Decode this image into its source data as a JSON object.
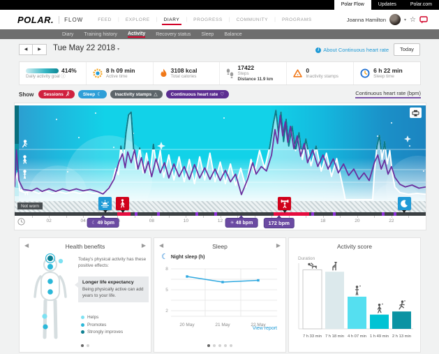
{
  "topbar": {
    "tabs": [
      {
        "label": "Polar Flow",
        "active": true
      },
      {
        "label": "Updates",
        "active": false
      },
      {
        "label": "Polar.com",
        "active": false
      }
    ]
  },
  "nav": {
    "logo": "POLAR.",
    "flow": "FLOW",
    "items": [
      {
        "label": "FEED"
      },
      {
        "label": "EXPLORE"
      },
      {
        "label": "DIARY"
      },
      {
        "label": "PROGRESS"
      },
      {
        "label": "COMMUNITY"
      },
      {
        "label": "PROGRAMS"
      }
    ],
    "active_item": "DIARY",
    "user": {
      "name": "Joanna Hamilton"
    }
  },
  "subnav": {
    "items": [
      {
        "label": "Diary"
      },
      {
        "label": "Training history"
      },
      {
        "label": "Activity"
      },
      {
        "label": "Recovery status"
      },
      {
        "label": "Sleep"
      },
      {
        "label": "Balance"
      }
    ],
    "active_item": "Activity"
  },
  "dateRow": {
    "date": "Tue May 22 2018",
    "aboutLink": "About Continuous heart rate",
    "todayButton": "Today"
  },
  "summary": {
    "goal": {
      "percent": "414%",
      "label": "Daily activity goal"
    },
    "activeTime": {
      "value": "8 h 09 min",
      "label": "Active time"
    },
    "calories": {
      "value": "3108 kcal",
      "label": "Total calories"
    },
    "steps": {
      "value": "17422",
      "label": "Steps",
      "distance": "Distance 11.9 km"
    },
    "inactivity": {
      "value": "0",
      "label": "Inactivity stamps"
    },
    "sleep": {
      "value": "6 h 22 min",
      "label": "Sleep time"
    }
  },
  "filters": {
    "show": "Show",
    "pills": [
      {
        "label": "Sessions",
        "color": "#d0213f",
        "icon": "runner-icon"
      },
      {
        "label": "Sleep",
        "color": "#2f9fd8",
        "icon": "moon-icon"
      },
      {
        "label": "Inactivity stamps",
        "color": "#5d656a",
        "icon": "triangle-icon"
      },
      {
        "label": "Continuous heart rate",
        "color": "#5c2e91",
        "icon": "heart-icon"
      }
    ],
    "axisLabel": "Continuous heart rate (bpm)"
  },
  "mainChart": {
    "notWorn": "Not worn",
    "pills": [
      {
        "icon": "moon",
        "label": "49 bpm",
        "t": 5.16
      },
      {
        "icon": "sun",
        "label": "48 bpm",
        "t": 13.24
      },
      {
        "icon": "",
        "label": "172 bpm",
        "t": 15.43
      }
    ]
  },
  "chart_data": [
    {
      "id": "continuous-heart-rate",
      "type": "area",
      "x_unit": "hours",
      "x_range": [
        0,
        24
      ],
      "ticks": [
        "02",
        "04",
        "06",
        "08",
        "10",
        "12",
        "14",
        "16",
        "18",
        "20",
        "22"
      ],
      "ylabel": "Continuous heart rate (bpm)",
      "hr_markers": {
        "sleep_min_bpm": 49,
        "day_min_bpm": 48,
        "max_bpm": 172
      },
      "sessions": [
        {
          "type": "walking",
          "start": 5.97,
          "end": 6.78,
          "badge_t": 6.3
        },
        {
          "type": "strength",
          "start": 15.1,
          "end": 17.18,
          "badge_t": 15.76
        }
      ],
      "wake_t": 5.28,
      "bedtime_t": 22.74,
      "not_worn_gaps": [
        [
          19.3,
          20.9
        ]
      ],
      "timeline_marks": [
        6.99,
        8.33,
        10.56,
        11.66,
        17.3,
        18.6,
        21.45,
        22.13
      ],
      "hr_series": [
        [
          0,
          60
        ],
        [
          0.1,
          118
        ],
        [
          0.25,
          70
        ],
        [
          0.5,
          56
        ],
        [
          1,
          54
        ],
        [
          1.3,
          58
        ],
        [
          1.6,
          53
        ],
        [
          2,
          57
        ],
        [
          2.4,
          53
        ],
        [
          2.8,
          57
        ],
        [
          3.2,
          54
        ],
        [
          3.6,
          57
        ],
        [
          4,
          54
        ],
        [
          4.4,
          56
        ],
        [
          4.8,
          53
        ],
        [
          5.16,
          49
        ],
        [
          5.5,
          58
        ],
        [
          5.8,
          72
        ],
        [
          6.1,
          100
        ],
        [
          6.3,
          112
        ],
        [
          6.45,
          90
        ],
        [
          6.6,
          115
        ],
        [
          6.8,
          98
        ],
        [
          7,
          118
        ],
        [
          7.2,
          88
        ],
        [
          7.4,
          106
        ],
        [
          7.6,
          82
        ],
        [
          7.8,
          100
        ],
        [
          8,
          76
        ],
        [
          8.25,
          104
        ],
        [
          8.5,
          82
        ],
        [
          8.75,
          98
        ],
        [
          9,
          74
        ],
        [
          9.3,
          96
        ],
        [
          9.6,
          76
        ],
        [
          9.9,
          92
        ],
        [
          10.2,
          72
        ],
        [
          10.5,
          95
        ],
        [
          10.8,
          74
        ],
        [
          11.1,
          90
        ],
        [
          11.4,
          72
        ],
        [
          11.7,
          88
        ],
        [
          12,
          70
        ],
        [
          12.3,
          86
        ],
        [
          12.6,
          68
        ],
        [
          12.9,
          80
        ],
        [
          13.24,
          48
        ],
        [
          13.6,
          72
        ],
        [
          13.9,
          98
        ],
        [
          14.1,
          80
        ],
        [
          14.4,
          92
        ],
        [
          14.7,
          85
        ],
        [
          15,
          110
        ],
        [
          15.2,
          150
        ],
        [
          15.35,
          128
        ],
        [
          15.5,
          172
        ],
        [
          15.65,
          140
        ],
        [
          15.8,
          162
        ],
        [
          15.95,
          130
        ],
        [
          16.1,
          155
        ],
        [
          16.3,
          120
        ],
        [
          16.5,
          140
        ],
        [
          16.7,
          108
        ],
        [
          16.9,
          128
        ],
        [
          17.1,
          98
        ],
        [
          17.4,
          118
        ],
        [
          17.7,
          92
        ],
        [
          18,
          110
        ],
        [
          18.3,
          88
        ],
        [
          18.6,
          104
        ],
        [
          18.9,
          82
        ],
        [
          19.2,
          96
        ],
        [
          19.5,
          78
        ],
        [
          19.8,
          88
        ],
        [
          20.1,
          72
        ],
        [
          20.4,
          82
        ],
        [
          20.7,
          70
        ],
        [
          21,
          98
        ],
        [
          21.2,
          110
        ],
        [
          21.4,
          88
        ],
        [
          21.6,
          102
        ],
        [
          21.8,
          80
        ],
        [
          22,
          92
        ],
        [
          22.2,
          75
        ],
        [
          22.5,
          64
        ],
        [
          22.8,
          60
        ],
        [
          23.2,
          63
        ],
        [
          23.6,
          58
        ],
        [
          24,
          60
        ]
      ],
      "activity_series": [
        [
          0,
          18
        ],
        [
          0.15,
          30
        ],
        [
          0.3,
          10
        ],
        [
          0.6,
          8
        ],
        [
          1,
          10
        ],
        [
          1.4,
          7
        ],
        [
          1.8,
          10
        ],
        [
          2.2,
          7
        ],
        [
          2.6,
          9
        ],
        [
          3,
          7
        ],
        [
          3.4,
          9
        ],
        [
          3.8,
          7
        ],
        [
          4.2,
          9
        ],
        [
          4.6,
          7
        ],
        [
          5,
          8
        ],
        [
          5.4,
          10
        ],
        [
          5.7,
          20
        ],
        [
          5.9,
          35
        ],
        [
          6.05,
          28
        ],
        [
          6.2,
          60
        ],
        [
          6.35,
          45
        ],
        [
          6.5,
          75
        ],
        [
          6.65,
          95
        ],
        [
          6.8,
          98
        ],
        [
          6.95,
          55
        ],
        [
          7.1,
          35
        ],
        [
          7.3,
          58
        ],
        [
          7.5,
          30
        ],
        [
          7.7,
          52
        ],
        [
          7.9,
          28
        ],
        [
          8.1,
          62
        ],
        [
          8.3,
          35
        ],
        [
          8.5,
          55
        ],
        [
          8.7,
          25
        ],
        [
          9,
          50
        ],
        [
          9.3,
          22
        ],
        [
          9.6,
          48
        ],
        [
          9.9,
          20
        ],
        [
          10.2,
          45
        ],
        [
          10.5,
          18
        ],
        [
          10.8,
          48
        ],
        [
          11.1,
          22
        ],
        [
          11.4,
          52
        ],
        [
          11.7,
          20
        ],
        [
          12,
          42
        ],
        [
          12.3,
          18
        ],
        [
          12.6,
          40
        ],
        [
          12.9,
          16
        ],
        [
          13.2,
          35
        ],
        [
          13.5,
          14
        ],
        [
          13.8,
          45
        ],
        [
          14,
          30
        ],
        [
          14.3,
          55
        ],
        [
          14.6,
          35
        ],
        [
          14.9,
          60
        ],
        [
          15.1,
          85
        ],
        [
          15.25,
          100
        ],
        [
          15.4,
          75
        ],
        [
          15.55,
          98
        ],
        [
          15.7,
          65
        ],
        [
          15.85,
          90
        ],
        [
          16,
          60
        ],
        [
          16.2,
          82
        ],
        [
          16.4,
          55
        ],
        [
          16.6,
          75
        ],
        [
          16.8,
          45
        ],
        [
          17,
          68
        ],
        [
          17.3,
          38
        ],
        [
          17.6,
          60
        ],
        [
          17.9,
          32
        ],
        [
          18.2,
          52
        ],
        [
          18.5,
          26
        ],
        [
          18.8,
          46
        ],
        [
          19.1,
          20
        ],
        [
          19.25,
          6
        ],
        [
          19.3,
          0
        ],
        [
          20.9,
          0
        ],
        [
          21,
          30
        ],
        [
          21.15,
          60
        ],
        [
          21.3,
          72
        ],
        [
          21.45,
          45
        ],
        [
          21.6,
          65
        ],
        [
          21.75,
          40
        ],
        [
          21.9,
          55
        ],
        [
          22.05,
          30
        ],
        [
          22.2,
          14
        ],
        [
          22.5,
          8
        ],
        [
          23,
          6
        ],
        [
          23.5,
          7
        ],
        [
          24,
          6
        ]
      ]
    },
    {
      "id": "night-sleep",
      "type": "line",
      "title": "Night sleep (h)",
      "categories": [
        "20 May",
        "21 May",
        "22 May"
      ],
      "values": [
        6.9,
        6.1,
        6.35
      ],
      "yticks": [
        8,
        5,
        2
      ],
      "ylim": [
        1,
        9
      ],
      "grid": true
    },
    {
      "id": "activity-score",
      "type": "bar",
      "ylabel": "Duration",
      "categories": [
        "7 h 33 min",
        "7 h 18 min",
        "4 h 07 min",
        "1 h 49 min",
        "2 h 13 min"
      ],
      "values_hours": [
        7.55,
        7.3,
        4.12,
        1.82,
        2.22
      ],
      "activities": [
        "lying",
        "sitting",
        "standing",
        "walking",
        "running"
      ],
      "colors": [
        "#ffffff",
        "#dce9ec",
        "#55dff0",
        "#00c3d4",
        "#0b93a3"
      ]
    }
  ],
  "cards": {
    "healthBenefits": {
      "title": "Health benefits",
      "intro": "Today's physical activity has these positive effects:",
      "highlight": {
        "title": "Longer life expectancy",
        "body": "Being physically active can add years to your life."
      },
      "legend": [
        {
          "label": "Helps",
          "color": "#7de1f2"
        },
        {
          "label": "Promotes",
          "color": "#2bb8d9"
        },
        {
          "label": "Strongly improves",
          "color": "#0c7f91"
        }
      ]
    },
    "sleepCard": {
      "title": "Sleep",
      "seriesLabel": "Night sleep (h)",
      "viewReport": "View report"
    },
    "activityScore": {
      "title": "Activity score",
      "yLabel": "Duration"
    }
  }
}
